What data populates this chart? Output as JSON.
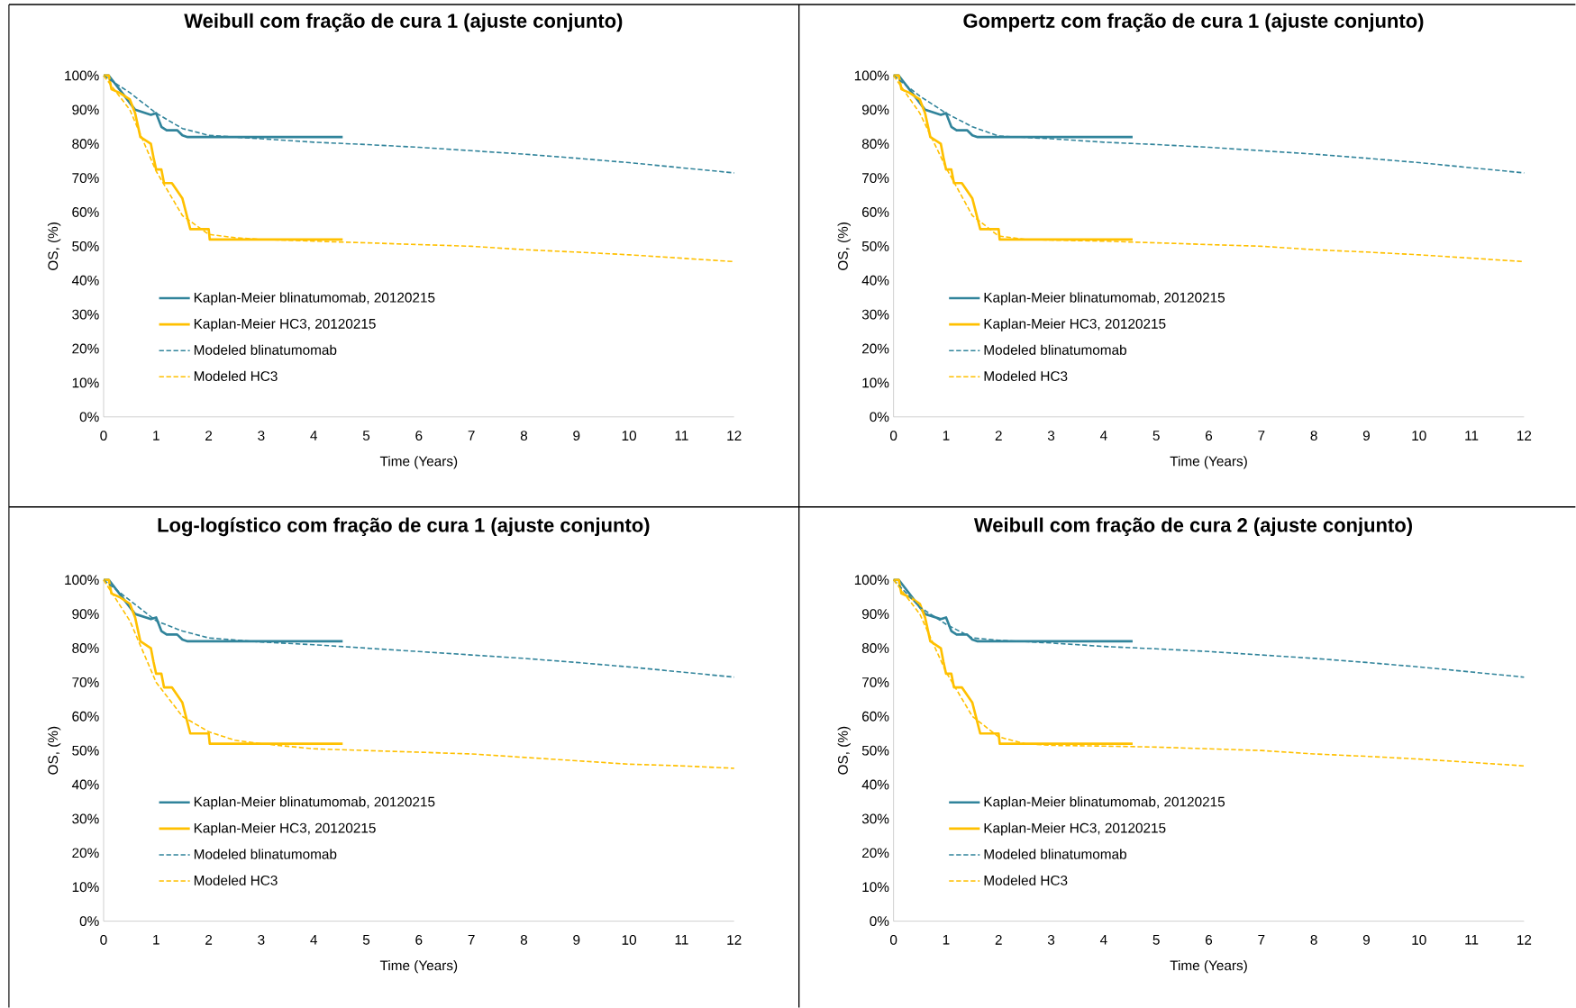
{
  "chart_data": [
    {
      "type": "line",
      "title": "Weibull com fração de cura 1 (ajuste conjunto)",
      "xlabel": "Time (Years)",
      "ylabel": "OS, (%)",
      "xlim": [
        0,
        12
      ],
      "ylim": [
        0,
        100
      ],
      "xticks": [
        0,
        1,
        2,
        3,
        4,
        5,
        6,
        7,
        8,
        9,
        10,
        11,
        12
      ],
      "yticks": [
        {
          "value": 0,
          "label": "0%"
        },
        {
          "value": 10,
          "label": "10%"
        },
        {
          "value": 20,
          "label": "20%"
        },
        {
          "value": 30,
          "label": "30%"
        },
        {
          "value": 40,
          "label": "40%"
        },
        {
          "value": 50,
          "label": "50%"
        },
        {
          "value": 60,
          "label": "60%"
        },
        {
          "value": 70,
          "label": "70%"
        },
        {
          "value": 80,
          "label": "80%"
        },
        {
          "value": 90,
          "label": "90%"
        },
        {
          "value": 100,
          "label": "100%"
        }
      ],
      "legend": "bottom left",
      "series": [
        {
          "name": "Kaplan-Meier blinatumomab, 20120215",
          "color": "#31849b",
          "line_style": "solid",
          "x": [
            0,
            0.1,
            0.2,
            0.4,
            0.6,
            0.9,
            1.0,
            1.1,
            1.2,
            1.4,
            1.5,
            1.6,
            4.55
          ],
          "values": [
            100,
            100,
            98,
            94,
            90,
            88.5,
            89,
            85,
            84,
            84,
            82.5,
            82,
            82
          ]
        },
        {
          "name": "Kaplan-Meier HC3, 20120215",
          "color": "#ffc000",
          "line_style": "solid",
          "x": [
            0,
            0.1,
            0.15,
            0.3,
            0.5,
            0.6,
            0.7,
            0.9,
            0.95,
            1.0,
            1.1,
            1.15,
            1.3,
            1.5,
            1.55,
            1.65,
            2.0,
            2.02,
            4.55
          ],
          "values": [
            100,
            100,
            96,
            95,
            93,
            89,
            82,
            80,
            76,
            72.5,
            72.5,
            68.5,
            68.5,
            64,
            61,
            55,
            55,
            52,
            52
          ]
        },
        {
          "name": "Modeled blinatumomab",
          "color": "#31849b",
          "line_style": "dashed",
          "x": [
            0,
            0.5,
            1,
            1.5,
            2,
            3,
            4,
            5,
            6,
            7,
            8,
            9,
            10,
            11,
            12
          ],
          "values": [
            100,
            95,
            89,
            84.5,
            82.5,
            81.5,
            80.5,
            79.8,
            79,
            78,
            77,
            75.8,
            74.5,
            73,
            71.5
          ]
        },
        {
          "name": "Modeled HC3",
          "color": "#ffc000",
          "line_style": "dashed",
          "x": [
            0,
            0.5,
            1,
            1.5,
            2,
            2.5,
            3,
            4,
            5,
            6,
            7,
            8,
            9,
            10,
            11,
            12
          ],
          "values": [
            100,
            90,
            72,
            59,
            53.5,
            52.5,
            52,
            51.5,
            51,
            50.5,
            50,
            49,
            48.3,
            47.5,
            46.5,
            45.5
          ]
        }
      ]
    },
    {
      "type": "line",
      "title": "Gompertz com fração de cura 1 (ajuste conjunto)",
      "xlabel": "Time (Years)",
      "ylabel": "OS, (%)",
      "xlim": [
        0,
        12
      ],
      "ylim": [
        0,
        100
      ],
      "xticks": [
        0,
        1,
        2,
        3,
        4,
        5,
        6,
        7,
        8,
        9,
        10,
        11,
        12
      ],
      "yticks": [
        {
          "value": 0,
          "label": "0%"
        },
        {
          "value": 10,
          "label": "10%"
        },
        {
          "value": 20,
          "label": "20%"
        },
        {
          "value": 30,
          "label": "30%"
        },
        {
          "value": 40,
          "label": "40%"
        },
        {
          "value": 50,
          "label": "50%"
        },
        {
          "value": 60,
          "label": "60%"
        },
        {
          "value": 70,
          "label": "70%"
        },
        {
          "value": 80,
          "label": "80%"
        },
        {
          "value": 90,
          "label": "90%"
        },
        {
          "value": 100,
          "label": "100%"
        }
      ],
      "legend": "bottom left",
      "series": [
        {
          "name": "Kaplan-Meier blinatumomab, 20120215",
          "color": "#31849b",
          "line_style": "solid",
          "x": [
            0,
            0.1,
            0.2,
            0.4,
            0.6,
            0.9,
            1.0,
            1.1,
            1.2,
            1.4,
            1.5,
            1.6,
            4.55
          ],
          "values": [
            100,
            100,
            98,
            94,
            90,
            88.5,
            89,
            85,
            84,
            84,
            82.5,
            82,
            82
          ]
        },
        {
          "name": "Kaplan-Meier HC3, 20120215",
          "color": "#ffc000",
          "line_style": "solid",
          "x": [
            0,
            0.1,
            0.15,
            0.3,
            0.5,
            0.6,
            0.7,
            0.9,
            0.95,
            1.0,
            1.1,
            1.15,
            1.3,
            1.5,
            1.55,
            1.65,
            2.0,
            2.02,
            4.55
          ],
          "values": [
            100,
            100,
            96,
            95,
            93,
            89,
            82,
            80,
            76,
            72.5,
            72.5,
            68.5,
            68.5,
            64,
            61,
            55,
            55,
            52,
            52
          ]
        },
        {
          "name": "Modeled blinatumomab",
          "color": "#31849b",
          "line_style": "dashed",
          "x": [
            0,
            0.5,
            1,
            1.5,
            2,
            3,
            4,
            5,
            6,
            7,
            8,
            9,
            10,
            11,
            12
          ],
          "values": [
            100,
            94,
            89,
            85,
            82.3,
            81.5,
            80.5,
            79.8,
            79,
            78,
            77,
            75.8,
            74.5,
            73,
            71.5
          ]
        },
        {
          "name": "Modeled HC3",
          "color": "#ffc000",
          "line_style": "dashed",
          "x": [
            0,
            0.5,
            1,
            1.5,
            2,
            2.5,
            3,
            4,
            5,
            6,
            7,
            8,
            9,
            10,
            11,
            12
          ],
          "values": [
            100,
            89,
            73,
            59,
            53,
            52,
            51.8,
            51.5,
            51,
            50.5,
            50,
            49,
            48.3,
            47.5,
            46.5,
            45.5
          ]
        }
      ]
    },
    {
      "type": "line",
      "title": "Log-logístico com fração de cura 1 (ajuste conjunto)",
      "xlabel": "Time (Years)",
      "ylabel": "OS, (%)",
      "xlim": [
        0,
        12
      ],
      "ylim": [
        0,
        100
      ],
      "xticks": [
        0,
        1,
        2,
        3,
        4,
        5,
        6,
        7,
        8,
        9,
        10,
        11,
        12
      ],
      "yticks": [
        {
          "value": 0,
          "label": "0%"
        },
        {
          "value": 10,
          "label": "10%"
        },
        {
          "value": 20,
          "label": "20%"
        },
        {
          "value": 30,
          "label": "30%"
        },
        {
          "value": 40,
          "label": "40%"
        },
        {
          "value": 50,
          "label": "50%"
        },
        {
          "value": 60,
          "label": "60%"
        },
        {
          "value": 70,
          "label": "70%"
        },
        {
          "value": 80,
          "label": "80%"
        },
        {
          "value": 90,
          "label": "90%"
        },
        {
          "value": 100,
          "label": "100%"
        }
      ],
      "legend": "bottom left",
      "series": [
        {
          "name": "Kaplan-Meier blinatumomab, 20120215",
          "color": "#31849b",
          "line_style": "solid",
          "x": [
            0,
            0.1,
            0.2,
            0.4,
            0.6,
            0.9,
            1.0,
            1.1,
            1.2,
            1.4,
            1.5,
            1.6,
            4.55
          ],
          "values": [
            100,
            100,
            98,
            94,
            90,
            88.5,
            89,
            85,
            84,
            84,
            82.5,
            82,
            82
          ]
        },
        {
          "name": "Kaplan-Meier HC3, 20120215",
          "color": "#ffc000",
          "line_style": "solid",
          "x": [
            0,
            0.1,
            0.15,
            0.3,
            0.5,
            0.6,
            0.7,
            0.9,
            0.95,
            1.0,
            1.1,
            1.15,
            1.3,
            1.5,
            1.55,
            1.65,
            2.0,
            2.02,
            4.55
          ],
          "values": [
            100,
            100,
            96,
            95,
            93,
            89,
            82,
            80,
            76,
            72.5,
            72.5,
            68.5,
            68.5,
            64,
            61,
            55,
            55,
            52,
            52
          ]
        },
        {
          "name": "Modeled blinatumomab",
          "color": "#31849b",
          "line_style": "dashed",
          "x": [
            0,
            0.5,
            1,
            1.5,
            2,
            3,
            4,
            5,
            6,
            7,
            8,
            9,
            10,
            11,
            12
          ],
          "values": [
            100,
            94,
            88,
            85,
            83,
            81.8,
            81,
            80,
            79,
            78,
            77,
            75.8,
            74.5,
            73,
            71.5
          ]
        },
        {
          "name": "Modeled HC3",
          "color": "#ffc000",
          "line_style": "dashed",
          "x": [
            0,
            0.5,
            1,
            1.5,
            2,
            2.5,
            3,
            4,
            5,
            6,
            7,
            8,
            9,
            10,
            11,
            12
          ],
          "values": [
            100,
            88,
            70,
            60,
            55.5,
            53,
            52,
            50.5,
            50,
            49.5,
            49,
            48,
            47,
            46,
            45.5,
            44.8
          ]
        }
      ]
    },
    {
      "type": "line",
      "title": "Weibull com fração de cura 2 (ajuste conjunto)",
      "xlabel": "Time (Years)",
      "ylabel": "OS, (%)",
      "xlim": [
        0,
        12
      ],
      "ylim": [
        0,
        100
      ],
      "xticks": [
        0,
        1,
        2,
        3,
        4,
        5,
        6,
        7,
        8,
        9,
        10,
        11,
        12
      ],
      "yticks": [
        {
          "value": 0,
          "label": "0%"
        },
        {
          "value": 10,
          "label": "10%"
        },
        {
          "value": 20,
          "label": "20%"
        },
        {
          "value": 30,
          "label": "30%"
        },
        {
          "value": 40,
          "label": "40%"
        },
        {
          "value": 50,
          "label": "50%"
        },
        {
          "value": 60,
          "label": "60%"
        },
        {
          "value": 70,
          "label": "70%"
        },
        {
          "value": 80,
          "label": "80%"
        },
        {
          "value": 90,
          "label": "90%"
        },
        {
          "value": 100,
          "label": "100%"
        }
      ],
      "legend": "bottom left",
      "series": [
        {
          "name": "Kaplan-Meier blinatumomab, 20120215",
          "color": "#31849b",
          "line_style": "solid",
          "x": [
            0,
            0.1,
            0.2,
            0.4,
            0.6,
            0.9,
            1.0,
            1.1,
            1.2,
            1.4,
            1.5,
            1.6,
            4.55
          ],
          "values": [
            100,
            100,
            98,
            94,
            90,
            88.5,
            89,
            85,
            84,
            84,
            82.5,
            82,
            82
          ]
        },
        {
          "name": "Kaplan-Meier HC3, 20120215",
          "color": "#ffc000",
          "line_style": "solid",
          "x": [
            0,
            0.1,
            0.15,
            0.3,
            0.5,
            0.6,
            0.7,
            0.9,
            0.95,
            1.0,
            1.1,
            1.15,
            1.3,
            1.5,
            1.55,
            1.65,
            2.0,
            2.02,
            4.55
          ],
          "values": [
            100,
            100,
            96,
            95,
            93,
            89,
            82,
            80,
            76,
            72.5,
            72.5,
            68.5,
            68.5,
            64,
            61,
            55,
            55,
            52,
            52
          ]
        },
        {
          "name": "Modeled blinatumomab",
          "color": "#31849b",
          "line_style": "dashed",
          "x": [
            0,
            0.5,
            1,
            1.5,
            2,
            3,
            4,
            5,
            6,
            7,
            8,
            9,
            10,
            11,
            12
          ],
          "values": [
            100,
            92,
            87,
            83,
            82.3,
            81.5,
            80.5,
            79.8,
            79,
            78,
            77,
            75.8,
            74.5,
            73,
            71.5
          ]
        },
        {
          "name": "Modeled HC3",
          "color": "#ffc000",
          "line_style": "dashed",
          "x": [
            0,
            0.5,
            1,
            1.5,
            2,
            2.5,
            3,
            4,
            5,
            6,
            7,
            8,
            9,
            10,
            11,
            12
          ],
          "values": [
            100,
            90,
            73,
            60,
            54,
            52,
            51.5,
            51.3,
            51,
            50.5,
            50,
            49,
            48.3,
            47.5,
            46.5,
            45.5
          ]
        }
      ]
    }
  ]
}
